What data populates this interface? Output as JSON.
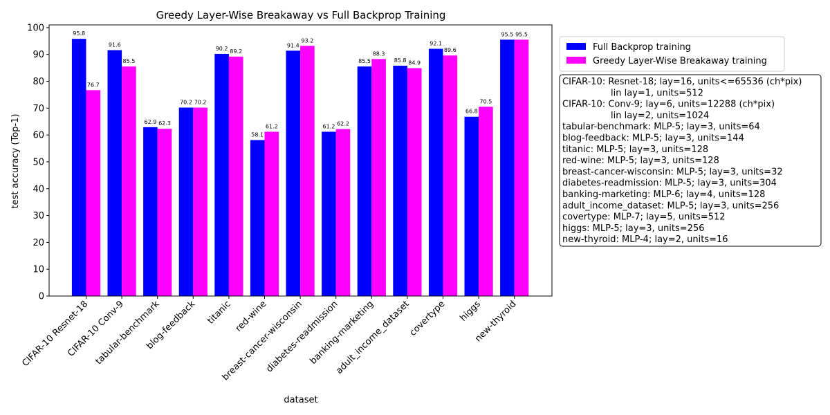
{
  "chart_data": {
    "type": "bar",
    "title": "Greedy Layer-Wise Breakaway vs Full Backprop Training",
    "xlabel": "dataset",
    "ylabel": "test accuracy (Top-1)",
    "ylim": [
      0,
      101
    ],
    "yticks": [
      0,
      10,
      20,
      30,
      40,
      50,
      60,
      70,
      80,
      90,
      100
    ],
    "grid": false,
    "legend_position": "top-right-outside",
    "categories": [
      "CIFAR-10 Resnet-18",
      "CIFAR-10 Conv-9",
      "tabular-benchmark",
      "blog-feedback",
      "titanic",
      "red-wine",
      "breast-cancer-wisconsin",
      "diabetes-readmission",
      "banking-marketing",
      "adult_income_dataset",
      "covertype",
      "higgs",
      "new-thyroid"
    ],
    "series": [
      {
        "name": "Full Backprop training",
        "color": "#0000ff",
        "values": [
          95.8,
          91.6,
          62.9,
          70.2,
          90.2,
          58.1,
          91.4,
          61.2,
          85.5,
          85.8,
          92.1,
          66.8,
          95.5
        ]
      },
      {
        "name": "Greedy Layer-Wise Breakaway training",
        "color": "#ff00ff",
        "values": [
          76.7,
          85.5,
          62.3,
          70.2,
          89.2,
          61.2,
          93.2,
          62.2,
          88.3,
          84.9,
          89.6,
          70.5,
          95.5
        ]
      }
    ],
    "annotation_lines": [
      "CIFAR-10: Resnet-18; lay=16, units<=65536 (ch*pix)",
      "lin lay=1, units=512",
      "CIFAR-10: Conv-9; lay=6, units=12288 (ch*pix)",
      "lin lay=2, units=1024",
      "tabular-benchmark: MLP-5; lay=3, units=64",
      "blog-feedback: MLP-5; lay=3, units=144",
      "titanic: MLP-5; lay=3, units=128",
      "red-wine: MLP-5; lay=3, units=128",
      "breast-cancer-wisconsin: MLP-5; lay=3, units=32",
      "diabetes-readmission: MLP-5; lay=3, units=304",
      "banking-marketing: MLP-6; lay=4, units=128",
      "adult_income_dataset: MLP-5; lay=3, units=256",
      "covertype: MLP-7; lay=5, units=512",
      "higgs: MLP-5; lay=3, units=256",
      "new-thyroid: MLP-4; lay=2, units=16"
    ]
  }
}
